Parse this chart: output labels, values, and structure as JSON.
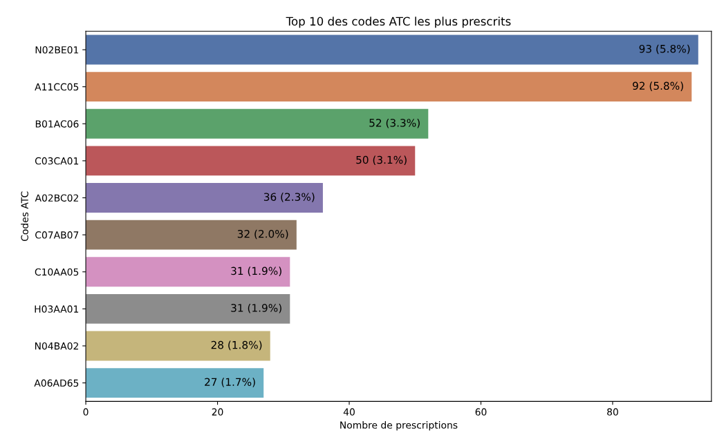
{
  "chart_data": {
    "type": "bar",
    "orientation": "horizontal",
    "title": "Top 10 des codes ATC les plus prescrits",
    "xlabel": "Nombre de prescriptions",
    "ylabel": "Codes ATC",
    "categories": [
      "N02BE01",
      "A11CC05",
      "B01AC06",
      "C03CA01",
      "A02BC02",
      "C07AB07",
      "C10AA05",
      "H03AA01",
      "N04BA02",
      "A06AD65"
    ],
    "values": [
      93,
      92,
      52,
      50,
      36,
      32,
      31,
      31,
      28,
      27
    ],
    "colors": [
      "#4c72b0",
      "#dd8452",
      "#55a868",
      "#c44e52",
      "#8172b3",
      "#937860",
      "#da8bc3",
      "#8c8c8c",
      "#ccb974",
      "#64b5cd"
    ],
    "value_labels": [
      "93 (5.8%)",
      "92 (5.8%)",
      "52 (3.3%)",
      "50 (3.1%)",
      "36 (2.3%)",
      "32 (2.0%)",
      "31 (1.9%)",
      "31 (1.9%)",
      "28 (1.8%)",
      "27 (1.7%)"
    ],
    "xlim": [
      0,
      95
    ],
    "xticks": [
      0,
      20,
      40,
      60,
      80
    ],
    "grid": false,
    "legend": false
  }
}
